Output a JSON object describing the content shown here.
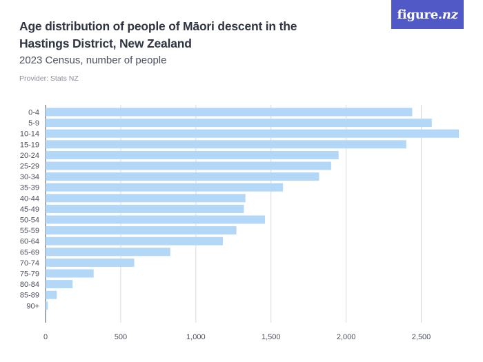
{
  "header": {
    "title": "Age distribution of people of Māori descent in the Hastings District, New Zealand",
    "subtitle": "2023 Census, number of people",
    "provider": "Provider: Stats NZ"
  },
  "logo": {
    "brand": "figure",
    "ext": ".nz",
    "color": "#5159c7"
  },
  "chart_data": {
    "type": "bar",
    "orientation": "horizontal",
    "categories": [
      "0-4",
      "5-9",
      "10-14",
      "15-19",
      "20-24",
      "25-29",
      "30-34",
      "35-39",
      "40-44",
      "45-49",
      "50-54",
      "55-59",
      "60-64",
      "65-69",
      "70-74",
      "75-79",
      "80-84",
      "85-89",
      "90+"
    ],
    "values": [
      2440,
      2570,
      2750,
      2400,
      1950,
      1900,
      1820,
      1580,
      1330,
      1320,
      1460,
      1270,
      1180,
      830,
      590,
      320,
      180,
      75,
      15
    ],
    "xlim": [
      0,
      2750
    ],
    "xticks": [
      0,
      500,
      1000,
      1500,
      2000,
      2500
    ],
    "xtick_labels": [
      "0",
      "500",
      "1,000",
      "1,500",
      "2,000",
      "2,500"
    ],
    "grid": true,
    "bar_color": "#b3d7f7",
    "title": "Age distribution of people of Māori descent in the Hastings District, New Zealand",
    "subtitle": "2023 Census, number of people"
  }
}
